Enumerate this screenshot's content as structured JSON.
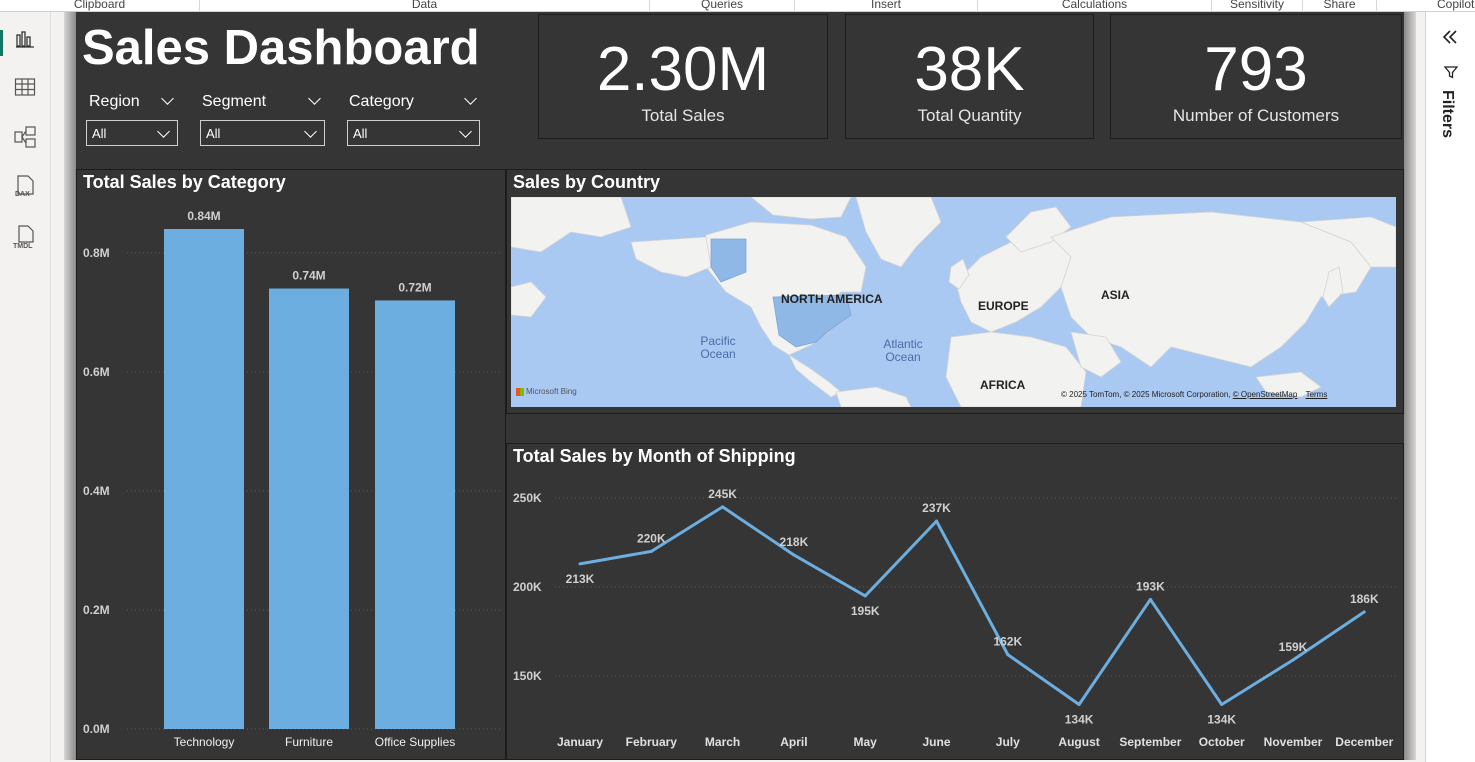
{
  "ribbon": {
    "groups": [
      "Clipboard",
      "Data",
      "Queries",
      "Insert",
      "Calculations",
      "Sensitivity",
      "Share",
      "Copilot"
    ]
  },
  "left_rail": {
    "icons": [
      "report-view-icon",
      "table-view-icon",
      "model-view-icon",
      "dax-query-icon",
      "tmdl-view-icon"
    ],
    "dax_text": "DAX",
    "tmdl_text": "TMDL"
  },
  "header": {
    "title": "Sales Dashboard"
  },
  "slicers": [
    {
      "label": "Region",
      "value": "All"
    },
    {
      "label": "Segment",
      "value": "All"
    },
    {
      "label": "Category",
      "value": "All"
    }
  ],
  "cards": [
    {
      "value": "2.30M",
      "label": "Total Sales"
    },
    {
      "value": "38K",
      "label": "Total Quantity"
    },
    {
      "value": "793",
      "label": "Number of Customers"
    }
  ],
  "map": {
    "title": "Sales by Country",
    "continents": [
      "NORTH AMERICA",
      "EUROPE",
      "ASIA",
      "AFRICA"
    ],
    "oceans": [
      "Pacific Ocean",
      "Atlantic Ocean"
    ],
    "brand": "Microsoft Bing",
    "attribution": "© 2025 TomTom, © 2025 Microsoft Corporation,",
    "osm_link": "© OpenStreetMap",
    "terms_link": "Terms",
    "land_color": "#f2f2f0",
    "water_color": "#a9c8f2",
    "highlight_color": "#8fb8e6"
  },
  "filters_pane": {
    "title": "Filters"
  },
  "chart_data": [
    {
      "type": "bar",
      "title": "Total Sales by Category",
      "categories": [
        "Technology",
        "Furniture",
        "Office Supplies"
      ],
      "values": [
        0.84,
        0.74,
        0.72
      ],
      "data_labels": [
        "0.84M",
        "0.74M",
        "0.72M"
      ],
      "yticks": [
        0.0,
        0.2,
        0.4,
        0.6,
        0.8
      ],
      "ytick_labels": [
        "0.0M",
        "0.2M",
        "0.4M",
        "0.6M",
        "0.8M"
      ],
      "ylim": [
        0,
        0.84
      ],
      "grid": true,
      "color": "#6caee0"
    },
    {
      "type": "line",
      "title": "Total Sales by Month of Shipping",
      "categories": [
        "January",
        "February",
        "March",
        "April",
        "May",
        "June",
        "July",
        "August",
        "September",
        "October",
        "November",
        "December"
      ],
      "values": [
        213,
        220,
        245,
        218,
        195,
        237,
        162,
        134,
        193,
        134,
        159,
        186
      ],
      "data_labels": [
        "213K",
        "220K",
        "245K",
        "218K",
        "195K",
        "237K",
        "162K",
        "134K",
        "193K",
        "134K",
        "159K",
        "186K"
      ],
      "label_positions": [
        "below",
        "above",
        "above",
        "above",
        "below",
        "above",
        "above",
        "below",
        "above",
        "below",
        "above",
        "above"
      ],
      "yticks": [
        150,
        200,
        250
      ],
      "ytick_labels": [
        "150K",
        "200K",
        "250K"
      ],
      "grid": true,
      "color": "#6caee0"
    }
  ]
}
